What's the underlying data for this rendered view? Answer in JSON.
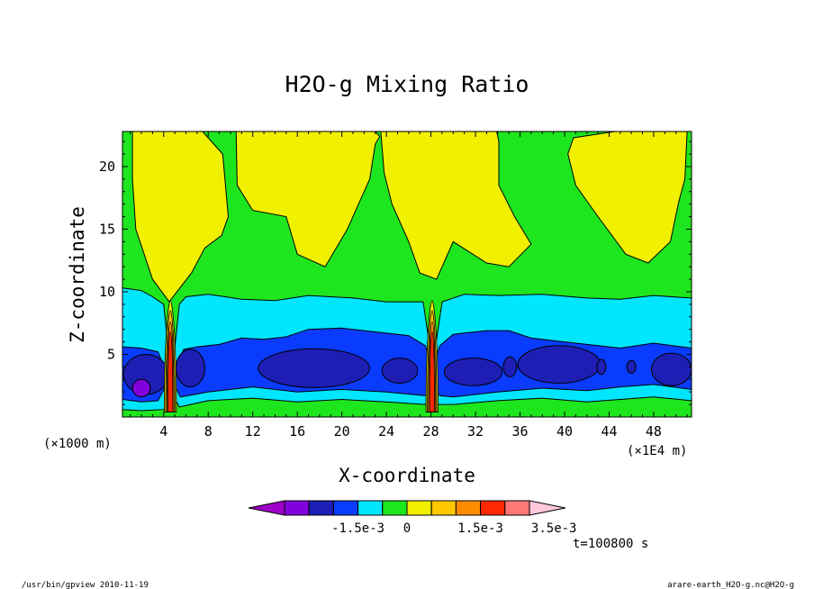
{
  "chart_data": {
    "type": "heatmap",
    "title": "H2O-g Mixing Ratio",
    "xlabel": "X-coordinate",
    "ylabel": "Z-coordinate",
    "x_unit_left": "(×1000 m)",
    "x_unit_right": "(×1E4 m)",
    "x_ticks": [
      4,
      8,
      12,
      16,
      20,
      24,
      28,
      32,
      36,
      40,
      44,
      48
    ],
    "y_ticks": [
      5,
      10,
      15,
      20
    ],
    "xlim": [
      0.3,
      51.4
    ],
    "ylim": [
      0,
      22.8
    ],
    "time_label": "t=100800 s",
    "colorbar": {
      "labels": [
        "-1.5e-3",
        "0",
        "1.5e-3",
        "3.5e-3"
      ],
      "label_bins": [
        3,
        5,
        8,
        11
      ],
      "colors": [
        "#a000c8",
        "#8200dc",
        "#1e1eb4",
        "#0a3cff",
        "#00e6ff",
        "#1ee61e",
        "#f0f000",
        "#ffc800",
        "#ff8c00",
        "#ff2800",
        "#ff7878",
        "#ffc8dc"
      ]
    },
    "fields": {
      "background_color": "#1ee61e",
      "upper_color": "#f0f000",
      "cyan_color": "#00e6ff",
      "blue_color": "#0a3cff",
      "navy_color": "#1e1eb4",
      "purple_color": "#8200dc",
      "yellow_regions": [
        {
          "name": "left-dry-region",
          "points": [
            [
              1.2,
              22.8
            ],
            [
              7.5,
              22.8
            ],
            [
              8,
              22.3
            ],
            [
              9.3,
              21
            ],
            [
              9.8,
              16
            ],
            [
              9.2,
              14.5
            ],
            [
              7.7,
              13.5
            ],
            [
              6.5,
              11.5
            ],
            [
              4.5,
              9.2
            ],
            [
              3,
              11
            ],
            [
              1.5,
              15
            ],
            [
              1.2,
              19
            ]
          ]
        },
        {
          "name": "middle-dry-region",
          "points": [
            [
              10.5,
              22.8
            ],
            [
              23,
              22.8
            ],
            [
              23.4,
              22.4
            ],
            [
              23,
              21.8
            ],
            [
              22.5,
              19
            ],
            [
              21.5,
              17
            ],
            [
              20.5,
              15
            ],
            [
              19.5,
              13.5
            ],
            [
              18.5,
              12
            ],
            [
              16,
              13
            ],
            [
              15,
              16
            ],
            [
              12,
              16.5
            ],
            [
              10.6,
              18.5
            ]
          ]
        },
        {
          "name": "right-dry-region",
          "points": [
            [
              23.5,
              22.8
            ],
            [
              33.9,
              22.8
            ],
            [
              34.1,
              22
            ],
            [
              34.1,
              18.5
            ],
            [
              35.5,
              16
            ],
            [
              37,
              13.8
            ],
            [
              35,
              12
            ],
            [
              33,
              12.3
            ],
            [
              30,
              14
            ],
            [
              28.5,
              11
            ],
            [
              27,
              11.5
            ],
            [
              26,
              14
            ],
            [
              24.5,
              17
            ],
            [
              23.8,
              19.5
            ]
          ]
        },
        {
          "name": "far-right-dry-region",
          "points": [
            [
              44.5,
              22.8
            ],
            [
              51,
              22.8
            ],
            [
              50.8,
              19
            ],
            [
              50.2,
              17
            ],
            [
              49.5,
              14
            ],
            [
              47.5,
              12.3
            ],
            [
              45.5,
              13
            ],
            [
              43,
              16
            ],
            [
              41,
              18.5
            ],
            [
              40.3,
              21
            ],
            [
              40.8,
              22.3
            ]
          ]
        }
      ],
      "cyan_band": {
        "top": [
          [
            0.3,
            10.3
          ],
          [
            2,
            10.1
          ],
          [
            3,
            9.6
          ],
          [
            4,
            9
          ],
          [
            4.4,
            5.5
          ],
          [
            5,
            5.5
          ],
          [
            5.4,
            9
          ],
          [
            6,
            9.6
          ],
          [
            8,
            9.8
          ],
          [
            11,
            9.4
          ],
          [
            14,
            9.3
          ],
          [
            17,
            9.7
          ],
          [
            21,
            9.5
          ],
          [
            24,
            9.2
          ],
          [
            27.3,
            9.2
          ],
          [
            27.9,
            5.5
          ],
          [
            28.4,
            5.5
          ],
          [
            29,
            9.2
          ],
          [
            31,
            9.8
          ],
          [
            34,
            9.7
          ],
          [
            38,
            9.8
          ],
          [
            42,
            9.5
          ],
          [
            45,
            9.4
          ],
          [
            48,
            9.7
          ],
          [
            51.4,
            9.5
          ]
        ],
        "bottom": [
          [
            51.4,
            1.3
          ],
          [
            48,
            1.6
          ],
          [
            45,
            1.4
          ],
          [
            42,
            1.2
          ],
          [
            38,
            1.5
          ],
          [
            34,
            1.3
          ],
          [
            30,
            1
          ],
          [
            28.6,
            1
          ],
          [
            28,
            1.8
          ],
          [
            27.5,
            1
          ],
          [
            24,
            1.2
          ],
          [
            20,
            1.4
          ],
          [
            16,
            1.2
          ],
          [
            12,
            1.5
          ],
          [
            8,
            1.3
          ],
          [
            5.4,
            0.8
          ],
          [
            5,
            1.5
          ],
          [
            4.5,
            1.5
          ],
          [
            4,
            0.6
          ],
          [
            2,
            0.5
          ],
          [
            0.3,
            0.6
          ]
        ]
      },
      "blue_band": {
        "top": [
          [
            0.3,
            5.6
          ],
          [
            2,
            5.5
          ],
          [
            3.5,
            5.2
          ],
          [
            4.2,
            3.6
          ],
          [
            5,
            3.6
          ],
          [
            5.8,
            5.4
          ],
          [
            7,
            5.6
          ],
          [
            9,
            5.8
          ],
          [
            11,
            6.3
          ],
          [
            13,
            6.2
          ],
          [
            15,
            6.4
          ],
          [
            17,
            7
          ],
          [
            20,
            7.1
          ],
          [
            23,
            6.8
          ],
          [
            26,
            6.5
          ],
          [
            27.5,
            5.7
          ],
          [
            28.1,
            3.8
          ],
          [
            28.8,
            5.7
          ],
          [
            30,
            6.6
          ],
          [
            33,
            6.9
          ],
          [
            35,
            6.9
          ],
          [
            37,
            6.3
          ],
          [
            39,
            6.1
          ],
          [
            42,
            5.8
          ],
          [
            45,
            5.5
          ],
          [
            48,
            5.9
          ],
          [
            51.4,
            5.5
          ]
        ],
        "bottom": [
          [
            51.4,
            2.2
          ],
          [
            48,
            2.6
          ],
          [
            45,
            2.4
          ],
          [
            42,
            2.1
          ],
          [
            38,
            2.3
          ],
          [
            34,
            2
          ],
          [
            30,
            1.6
          ],
          [
            28.8,
            1.7
          ],
          [
            28.1,
            2.6
          ],
          [
            27.5,
            1.7
          ],
          [
            24,
            2
          ],
          [
            20,
            2.2
          ],
          [
            16,
            2
          ],
          [
            12,
            2.4
          ],
          [
            8,
            2
          ],
          [
            5.5,
            1.6
          ],
          [
            5,
            2.5
          ],
          [
            4.2,
            2.5
          ],
          [
            3.5,
            1.3
          ],
          [
            2,
            1.2
          ],
          [
            0.3,
            1.4
          ]
        ]
      },
      "navy_blobs": [
        {
          "name": "navy-blob-1",
          "cx": 2.4,
          "cy": 3.4,
          "rx": 2.0,
          "ry": 1.6
        },
        {
          "name": "navy-blob-2",
          "cx": 6.4,
          "cy": 3.9,
          "rx": 1.3,
          "ry": 1.5
        },
        {
          "name": "navy-blob-3",
          "cx": 17.5,
          "cy": 3.9,
          "rx": 5.0,
          "ry": 1.55
        },
        {
          "name": "navy-blob-4",
          "cx": 25.2,
          "cy": 3.7,
          "rx": 1.6,
          "ry": 1.0
        },
        {
          "name": "navy-blob-5",
          "cx": 31.8,
          "cy": 3.6,
          "rx": 2.6,
          "ry": 1.1
        },
        {
          "name": "navy-blob-6",
          "cx": 35.1,
          "cy": 4.0,
          "rx": 0.6,
          "ry": 0.8
        },
        {
          "name": "navy-blob-7",
          "cx": 39.5,
          "cy": 4.2,
          "rx": 3.7,
          "ry": 1.5
        },
        {
          "name": "navy-blob-8",
          "cx": 43.3,
          "cy": 4.0,
          "rx": 0.4,
          "ry": 0.6
        },
        {
          "name": "navy-blob-9",
          "cx": 46.0,
          "cy": 4.0,
          "rx": 0.4,
          "ry": 0.5
        },
        {
          "name": "navy-blob-10",
          "cx": 49.6,
          "cy": 3.8,
          "rx": 1.8,
          "ry": 1.3
        }
      ],
      "purple_blob": {
        "cx": 2.0,
        "cy": 2.3,
        "rx": 0.8,
        "ry": 0.7
      }
    }
  },
  "footer": {
    "left": "/usr/bin/gpview  2010-11-19",
    "right": "arare-earth_H2O-g.nc@H2O-g"
  }
}
